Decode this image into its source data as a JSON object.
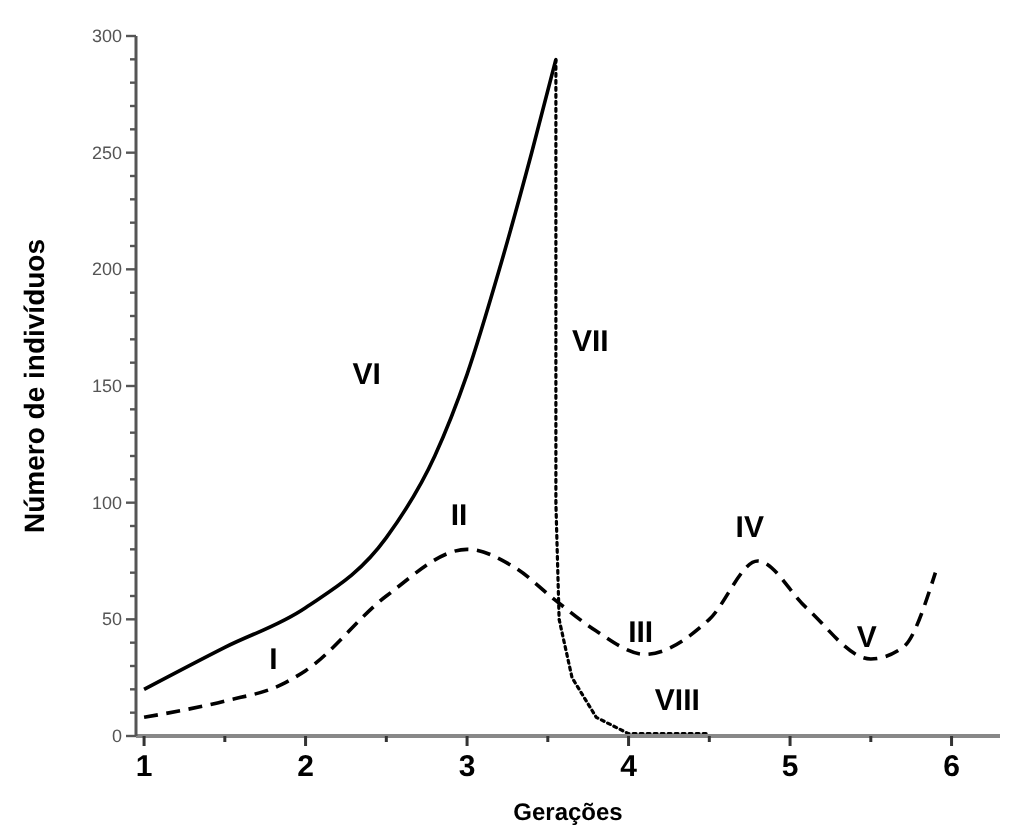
{
  "chart_data": {
    "type": "line",
    "xlabel": "Gerações",
    "ylabel": "Número de indivíduos",
    "xlim": [
      0.95,
      6.3
    ],
    "ylim": [
      0,
      300
    ],
    "xticks": [
      1,
      {
        "value": 1.5,
        "label": null
      },
      2,
      {
        "value": 2.5,
        "label": null
      },
      3,
      {
        "value": 3.5,
        "label": null
      },
      4,
      {
        "value": 4.5,
        "label": null
      },
      5,
      {
        "value": 5.5,
        "label": null
      },
      6
    ],
    "yticks": [
      0,
      {
        "value": 10,
        "label": null
      },
      {
        "value": 20,
        "label": null
      },
      {
        "value": 30,
        "label": null
      },
      {
        "value": 40,
        "label": null
      },
      50,
      {
        "value": 60,
        "label": null
      },
      {
        "value": 70,
        "label": null
      },
      {
        "value": 80,
        "label": null
      },
      {
        "value": 90,
        "label": null
      },
      100,
      {
        "value": 110,
        "label": null
      },
      {
        "value": 120,
        "label": null
      },
      {
        "value": 130,
        "label": null
      },
      {
        "value": 140,
        "label": null
      },
      150,
      {
        "value": 160,
        "label": null
      },
      {
        "value": 170,
        "label": null
      },
      {
        "value": 180,
        "label": null
      },
      {
        "value": 190,
        "label": null
      },
      200,
      {
        "value": 210,
        "label": null
      },
      {
        "value": 220,
        "label": null
      },
      {
        "value": 230,
        "label": null
      },
      {
        "value": 240,
        "label": null
      },
      250,
      {
        "value": 260,
        "label": null
      },
      {
        "value": 270,
        "label": null
      },
      {
        "value": 280,
        "label": null
      },
      {
        "value": 290,
        "label": null
      },
      300
    ],
    "grid": false,
    "series": [
      {
        "color": "#000000",
        "line_style": "solid",
        "x": [
          1,
          1.5,
          2,
          2.5,
          2.8,
          3,
          3.2,
          3.4,
          3.55
        ],
        "values": [
          20,
          38,
          55,
          85,
          120,
          155,
          200,
          250,
          290
        ]
      },
      {
        "color": "#000000",
        "line_style": "dotted",
        "x": [
          3.55,
          3.55,
          3.57,
          3.65,
          3.8,
          4,
          4.5
        ],
        "values": [
          290,
          100,
          50,
          25,
          8,
          1,
          1
        ]
      },
      {
        "color": "#000000",
        "line_style": "dashed",
        "x": [
          1,
          1.5,
          1.85,
          2,
          2.5,
          3,
          3.3,
          3.55,
          3.8,
          4.1,
          4.5,
          4.8,
          5.1,
          5.5,
          5.7,
          5.9
        ],
        "values": [
          8,
          15,
          22,
          28,
          60,
          80,
          72,
          58,
          45,
          35,
          50,
          75,
          55,
          33,
          38,
          70
        ]
      }
    ],
    "annotations": [
      {
        "text": "I",
        "x": 1.85,
        "y": 22
      },
      {
        "text": "II",
        "x": 3,
        "y": 80
      },
      {
        "text": "III",
        "x": 4.1,
        "y": 35
      },
      {
        "text": "IV",
        "x": 4.8,
        "y": 75
      },
      {
        "text": "V",
        "x": 5.5,
        "y": 33
      },
      {
        "text": "VI",
        "x": 2.8,
        "y": 120
      },
      {
        "text": "VII",
        "x": 3.55,
        "y": 165
      },
      {
        "text": "VIII",
        "x": 4.5,
        "y": 1
      }
    ]
  }
}
